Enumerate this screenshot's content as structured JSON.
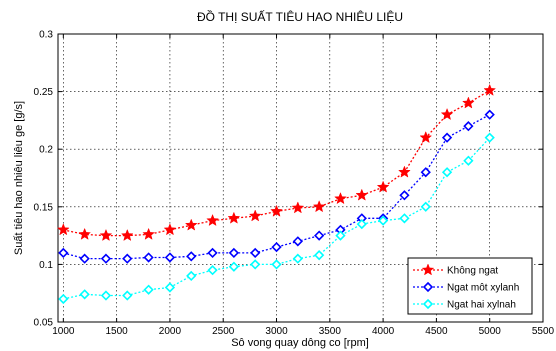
{
  "chart_data": {
    "type": "line",
    "title": "ĐỒ THỊ SUẤT TIÊU HAO NHIÊU LIỆU",
    "xlabel": "Sô vong quay dông co [rpm]",
    "ylabel": "Suất tiêu hao nhiêu liêu ge [g/s]",
    "xlim": [
      950,
      5500
    ],
    "ylim": [
      0.05,
      0.3
    ],
    "xticks": [
      1000,
      1500,
      2000,
      2500,
      3000,
      3500,
      4000,
      4500,
      5000,
      5500
    ],
    "xtick_labels": [
      "1000",
      "1500",
      "2000",
      "2500",
      "3000",
      "3500",
      "4000",
      "4500",
      "5000",
      "5500"
    ],
    "yticks": [
      0.05,
      0.1,
      0.15,
      0.2,
      0.25,
      0.3
    ],
    "ytick_labels": [
      "0.05",
      "0.1",
      "0.15",
      "0.2",
      "0.25",
      "0.3"
    ],
    "grid": true,
    "legend_position": "bottom-right",
    "x": [
      1000,
      1200,
      1400,
      1600,
      1800,
      2000,
      2200,
      2400,
      2600,
      2800,
      3000,
      3200,
      3400,
      3600,
      3800,
      4000,
      4200,
      4400,
      4600,
      4800,
      5000
    ],
    "series": [
      {
        "name": "Không ngat",
        "color": "#ff0000",
        "marker": "star",
        "values": [
          0.13,
          0.126,
          0.125,
          0.125,
          0.126,
          0.13,
          0.134,
          0.138,
          0.14,
          0.142,
          0.146,
          0.149,
          0.15,
          0.157,
          0.16,
          0.167,
          0.18,
          0.21,
          0.23,
          0.24,
          0.251
        ]
      },
      {
        "name": "Ngat môt xylanh",
        "color": "#0000ff",
        "marker": "diamond",
        "values": [
          0.11,
          0.105,
          0.105,
          0.105,
          0.106,
          0.106,
          0.107,
          0.11,
          0.11,
          0.11,
          0.115,
          0.12,
          0.125,
          0.13,
          0.14,
          0.14,
          0.16,
          0.18,
          0.21,
          0.22,
          0.23
        ]
      },
      {
        "name": "Ngat hai xylnah",
        "color": "#00ffff",
        "marker": "diamond",
        "values": [
          0.07,
          0.074,
          0.073,
          0.073,
          0.078,
          0.08,
          0.09,
          0.095,
          0.098,
          0.1,
          0.1,
          0.105,
          0.108,
          0.125,
          0.135,
          0.138,
          0.14,
          0.15,
          0.18,
          0.19,
          0.21
        ]
      }
    ]
  }
}
